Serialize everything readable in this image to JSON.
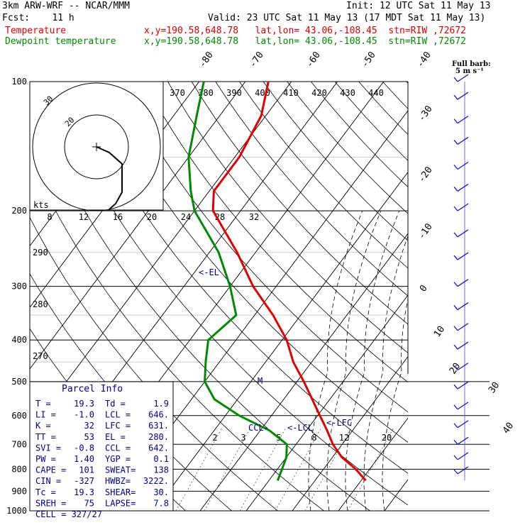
{
  "header": {
    "model": "3km ARW-WRF -- NCAR/MMM",
    "init": "Init: 12 UTC Sat 11 May 13",
    "fcst": "Fcst:    11 h",
    "valid": "Valid: 23 UTC Sat 11 May 13 (17 MDT Sat 11 May 13)",
    "temperature_label": "Temperature",
    "dewpoint_label": "Dewpoint temperature",
    "location": "x,y=190.58,648.78   lat,lon= 43.06,-108.45  stn=RIW ,72672"
  },
  "colors": {
    "temperature": "#e00000",
    "dewpoint": "#008a00",
    "text": "#000000",
    "annotation": "#00008b"
  },
  "chart_data": {
    "type": "skew-t log-p sounding",
    "pressure_labels": [
      "100",
      "200",
      "300",
      "400",
      "500",
      "600",
      "700",
      "800",
      "900",
      "1000"
    ],
    "isotherm_labels": [
      "-80",
      "-70",
      "-60",
      "-50",
      "-40",
      "-30",
      "-20",
      "-10",
      "0",
      "10",
      "20",
      "30",
      "40"
    ],
    "theta_labels": [
      "370",
      "380",
      "390",
      "400",
      "410",
      "420",
      "430",
      "440"
    ],
    "theta_low_labels": [
      "290",
      "280",
      "270"
    ],
    "mixing_ratio_labels": [
      "2",
      "3",
      "5",
      "8",
      "12",
      "20"
    ],
    "hodograph_labels": {
      "units": "kts",
      "rings": [
        "8",
        "12",
        "16",
        "20",
        "24",
        "28",
        "32"
      ],
      "ring_outer": "30",
      "ring_inner": "20"
    },
    "wind_legend": {
      "title": "Full barb:",
      "value": "5 m s⁻¹"
    },
    "annotations": {
      "el": "<-EL",
      "ccl": "CCL-",
      "lcl": "<-LCL",
      "lfc": "<-LFC",
      "m": "M"
    },
    "temperature": [
      [
        850,
        21
      ],
      [
        800,
        17
      ],
      [
        750,
        12
      ],
      [
        700,
        8
      ],
      [
        650,
        4.5
      ],
      [
        600,
        0.5
      ],
      [
        500,
        -8.5
      ],
      [
        450,
        -14
      ],
      [
        400,
        -19
      ],
      [
        350,
        -26
      ],
      [
        300,
        -35
      ],
      [
        250,
        -44
      ],
      [
        200,
        -56
      ],
      [
        180,
        -59
      ],
      [
        150,
        -59
      ],
      [
        120,
        -61
      ],
      [
        100,
        -65
      ]
    ],
    "dewpoint": [
      [
        850,
        1.9
      ],
      [
        800,
        1
      ],
      [
        750,
        0
      ],
      [
        700,
        -2
      ],
      [
        650,
        -8
      ],
      [
        600,
        -17
      ],
      [
        550,
        -25
      ],
      [
        500,
        -30
      ],
      [
        450,
        -33
      ],
      [
        400,
        -36
      ],
      [
        350,
        -34
      ],
      [
        300,
        -40
      ],
      [
        250,
        -48
      ],
      [
        200,
        -60
      ],
      [
        180,
        -64
      ],
      [
        150,
        -70
      ],
      [
        120,
        -75
      ],
      [
        100,
        -79
      ]
    ],
    "hodograph": [
      [
        0,
        0
      ],
      [
        2,
        -1
      ],
      [
        4,
        -3
      ],
      [
        4,
        -6
      ],
      [
        4,
        -8
      ],
      [
        3,
        -10
      ],
      [
        2,
        -11
      ]
    ],
    "wind_barbs": [
      [
        100,
        10,
        25
      ],
      [
        110,
        12,
        22
      ],
      [
        125,
        10,
        22
      ],
      [
        140,
        12,
        22
      ],
      [
        160,
        14,
        25
      ],
      [
        180,
        12,
        20
      ],
      [
        200,
        14,
        20
      ],
      [
        230,
        14,
        18
      ],
      [
        260,
        16,
        16
      ],
      [
        300,
        16,
        15
      ],
      [
        340,
        15,
        14
      ],
      [
        380,
        15,
        12
      ],
      [
        420,
        16,
        12
      ],
      [
        470,
        18,
        10
      ],
      [
        520,
        20,
        10
      ],
      [
        580,
        20,
        8
      ],
      [
        640,
        20,
        6
      ],
      [
        700,
        20,
        6
      ],
      [
        760,
        25,
        4
      ],
      [
        820,
        25,
        4
      ]
    ]
  },
  "parcel_info": {
    "title": "Parcel Info",
    "rows": [
      [
        "T  =",
        "19.3",
        "Td =",
        "1.9"
      ],
      [
        "LI =",
        "-1.0",
        "LCL =",
        "646."
      ],
      [
        "K  =",
        "32",
        "LFC =",
        "631."
      ],
      [
        "TT =",
        "53",
        "EL =",
        "280."
      ],
      [
        "SVI =",
        "-0.8",
        "CCL =",
        "642."
      ],
      [
        "PW =",
        "1.40",
        "YGP =",
        "0.1"
      ],
      [
        "CAPE =",
        "101",
        "SWEAT=",
        "138"
      ],
      [
        "CIN =",
        "-327",
        "HWBZ=",
        "3222."
      ],
      [
        "Tc =",
        "19.3",
        "SHEAR=",
        "30."
      ],
      [
        "SREH =",
        "75",
        "LAPSE=",
        "7.8"
      ]
    ],
    "cell": "CELL = 327/27"
  }
}
